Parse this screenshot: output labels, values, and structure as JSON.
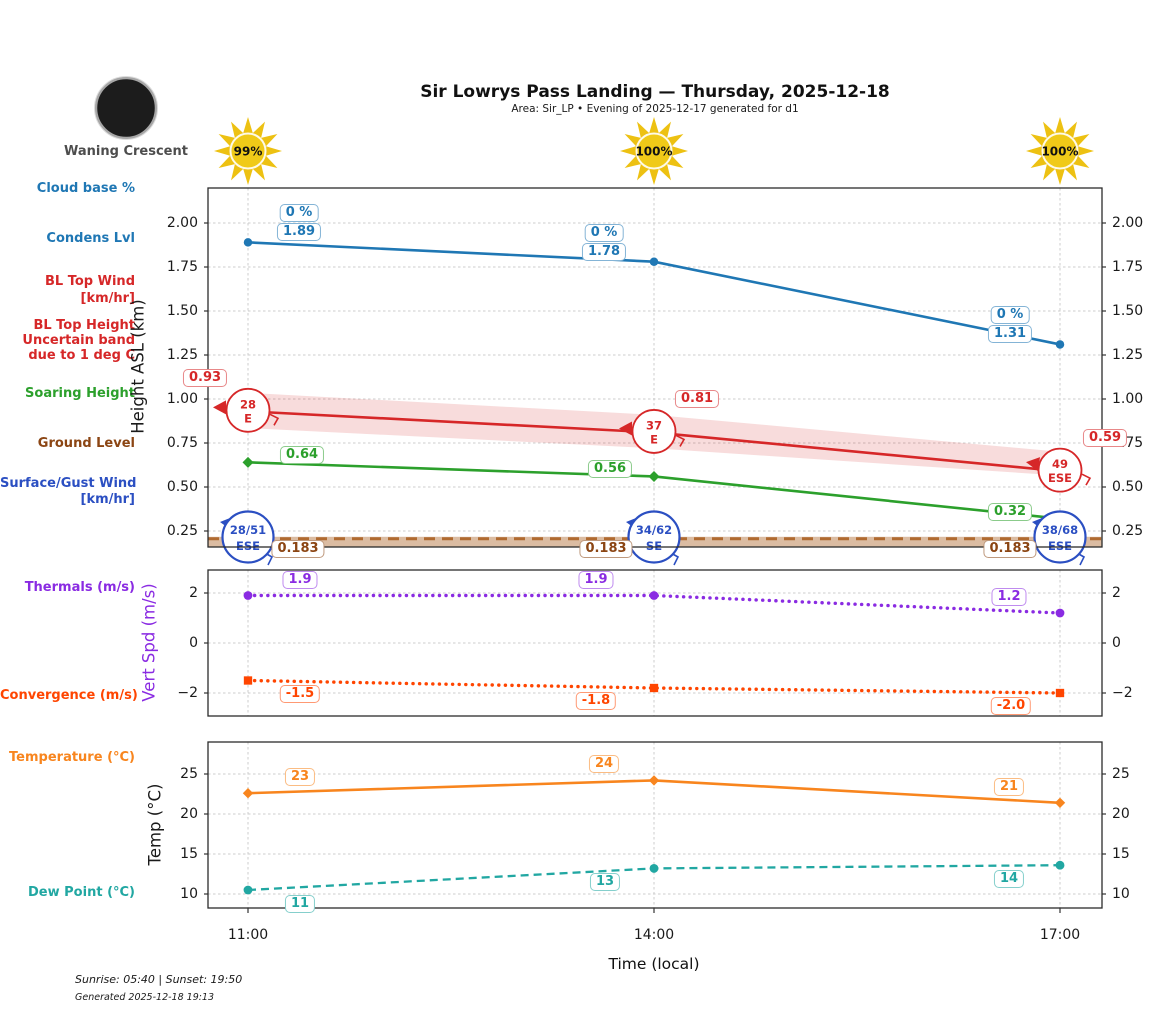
{
  "header": {
    "title": "Sir Lowrys Pass Landing — Thursday, 2025-12-18",
    "subtitle": "Area: Sir_LP • Evening of 2025-12-17 generated for d1"
  },
  "moon": {
    "phase_label": "Waning Crescent"
  },
  "sun_markers": [
    "99%",
    "100%",
    "100%"
  ],
  "left_labels": {
    "cloud_base": "Cloud base %",
    "condens": "Condens Lvl",
    "bl_top_wind_1": "BL Top Wind",
    "bl_top_wind_2": "[km/hr]",
    "bl_top_height_1": "BL Top Height",
    "bl_top_height_2": "Uncertain band",
    "bl_top_height_3": "due to 1 deg C",
    "soaring": "Soaring Height",
    "ground": "Ground Level",
    "surface_wind_1": "Surface/Gust Wind",
    "surface_wind_2": "[km/hr]",
    "thermals": "Thermals (m/s)",
    "convergence": "Convergence (m/s)",
    "temperature": "Temperature (°C)",
    "dew_point": "Dew Point (°C)"
  },
  "axes": {
    "x_ticks": [
      "11:00",
      "14:00",
      "17:00"
    ],
    "x_label": "Time (local)",
    "height_axis_label": "Height ASL (km)",
    "height_tick_labels": [
      "2.00",
      "1.75",
      "1.50",
      "1.25",
      "1.00",
      "0.75",
      "0.50",
      "0.25"
    ],
    "vspd_axis_label": "Vert Spd (m/s)",
    "vspd_tick_labels": [
      "2",
      "0",
      "−2"
    ],
    "temp_axis_label": "Temp (°C)",
    "temp_tick_labels": [
      "25",
      "20",
      "15",
      "10"
    ]
  },
  "colors": {
    "blue": "#1f77b4",
    "red": "#d62728",
    "green": "#2ca02c",
    "brown_line": "#b06a30",
    "brown_text": "#8b4513",
    "wind_blue": "#2b4fc2",
    "purple": "#8a2be2",
    "orangered": "#ff4500",
    "orange": "#f8851e",
    "teal": "#21a7a2",
    "sun": "#edc112",
    "grid": "#cccccc"
  },
  "chart_data": [
    {
      "type": "line",
      "title": "Height ASL (km)",
      "ylabel": "Height ASL (km)",
      "x": [
        "11:00",
        "14:00",
        "17:00"
      ],
      "ylim": [
        0.14,
        2.2
      ],
      "yticks": [
        2.0,
        1.75,
        1.5,
        1.25,
        1.0,
        0.75,
        0.5,
        0.25
      ],
      "series": [
        {
          "name": "Cloud base %",
          "color": "#1f77b4",
          "pct_labels": [
            "0 %",
            "0 %",
            "0 %"
          ]
        },
        {
          "name": "Condensation level (km ASL)",
          "color": "#1f77b4",
          "values": [
            1.89,
            1.78,
            1.31
          ],
          "labels": [
            "1.89",
            "1.78",
            "1.31"
          ],
          "marker": "circle"
        },
        {
          "name": "BL top height (km ASL)",
          "color": "#d62728",
          "values": [
            0.93,
            0.81,
            0.59
          ],
          "labels": [
            "0.93",
            "0.81",
            "0.59"
          ],
          "band_upper": [
            1.035,
            0.91,
            0.7
          ],
          "band_lower": [
            0.835,
            0.72,
            0.565
          ],
          "wind_labels": [
            [
              "28",
              "E"
            ],
            [
              "37",
              "E"
            ],
            [
              "49",
              "ESE"
            ]
          ]
        },
        {
          "name": "Soaring height (km ASL)",
          "color": "#2ca02c",
          "values": [
            0.64,
            0.56,
            0.32
          ],
          "labels": [
            "0.64",
            "0.56",
            "0.32"
          ],
          "marker": "diamond"
        },
        {
          "name": "Ground level (km ASL)",
          "color": "#b06a30",
          "text_color": "#8b4513",
          "value": 0.183,
          "labels": [
            "0.183",
            "0.183",
            "0.183"
          ]
        },
        {
          "name": "Surface/Gust wind (km/hr)",
          "color": "#2b4fc2",
          "wind_labels": [
            [
              "28/51",
              "ESE"
            ],
            [
              "34/62",
              "SE"
            ],
            [
              "38/68",
              "ESE"
            ]
          ]
        }
      ]
    },
    {
      "type": "line",
      "ylabel": "Vert Spd (m/s)",
      "x": [
        "11:00",
        "14:00",
        "17:00"
      ],
      "ylim": [
        -3,
        3
      ],
      "yticks": [
        2,
        0,
        -2
      ],
      "series": [
        {
          "name": "Thermals (m/s)",
          "color": "#8a2be2",
          "style": "dotted",
          "marker": "circle",
          "values": [
            1.9,
            1.9,
            1.2
          ],
          "labels": [
            "1.9",
            "1.9",
            "1.2"
          ]
        },
        {
          "name": "Convergence (m/s)",
          "color": "#ff4500",
          "style": "dotted",
          "marker": "square",
          "values": [
            -1.5,
            -1.8,
            -2.0
          ],
          "labels": [
            "-1.5",
            "-1.8",
            "-2.0"
          ]
        }
      ]
    },
    {
      "type": "line",
      "ylabel": "Temp (°C)",
      "x": [
        "11:00",
        "14:00",
        "17:00"
      ],
      "ylim": [
        8,
        28
      ],
      "yticks": [
        25,
        20,
        15,
        10
      ],
      "series": [
        {
          "name": "Temperature (°C)",
          "color": "#f8851e",
          "style": "solid",
          "marker": "diamond",
          "values": [
            22.6,
            24.2,
            21.4
          ],
          "labels": [
            "23",
            "24",
            "21"
          ]
        },
        {
          "name": "Dew Point (°C)",
          "color": "#21a7a2",
          "style": "dashed",
          "marker": "circle",
          "values": [
            10.5,
            13.2,
            13.6
          ],
          "labels": [
            "11",
            "13",
            "14"
          ]
        }
      ]
    }
  ],
  "footer": {
    "sun_line": "Sunrise: 05:40 | Sunset: 19:50",
    "generated": "Generated 2025-12-18 19:13"
  }
}
